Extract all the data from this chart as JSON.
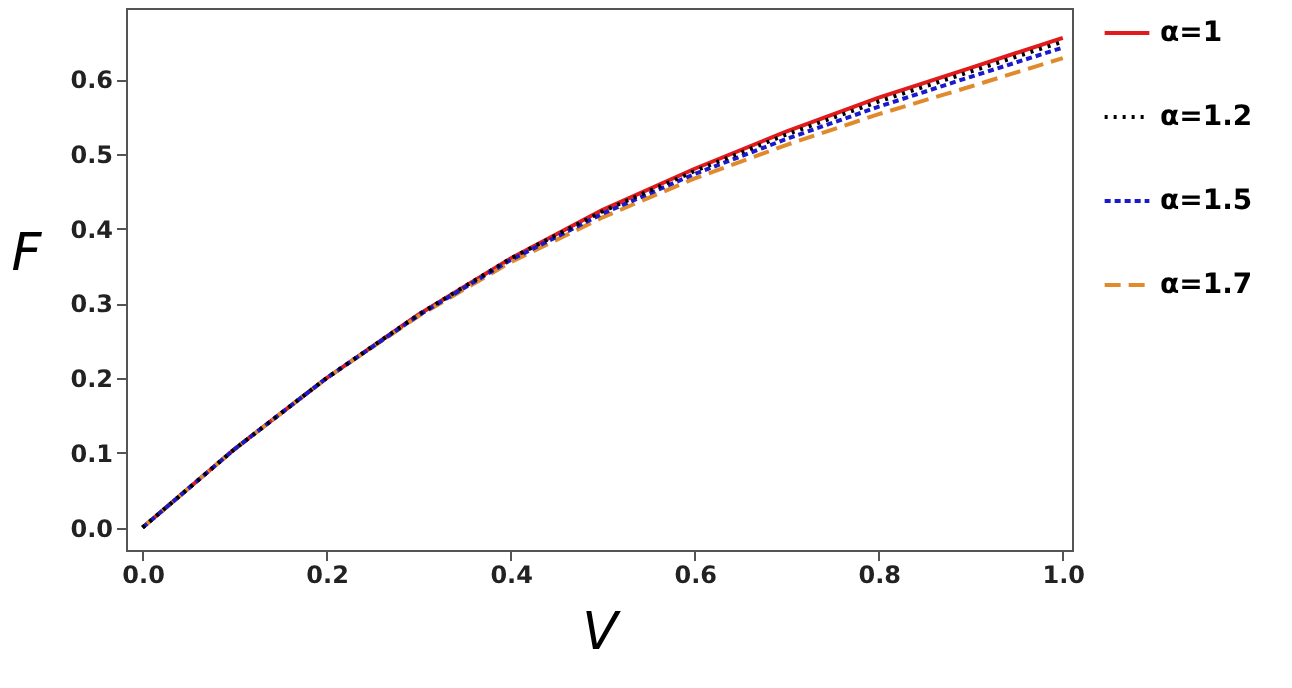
{
  "chart_data": {
    "type": "line",
    "xlabel": "V",
    "ylabel": "F",
    "x": [
      0,
      0.1,
      0.2,
      0.3,
      0.4,
      0.5,
      0.6,
      0.7,
      0.8,
      0.9,
      1.0
    ],
    "series": [
      {
        "name": "α=1",
        "color": "#e31a1c",
        "line_style": "solid",
        "values": [
          0,
          0.105,
          0.2,
          0.285,
          0.36,
          0.425,
          0.48,
          0.53,
          0.575,
          0.615,
          0.655
        ]
      },
      {
        "name": "α=1.2",
        "color": "#000000",
        "line_style": "dotted",
        "values": [
          0,
          0.105,
          0.2,
          0.285,
          0.36,
          0.423,
          0.477,
          0.526,
          0.57,
          0.61,
          0.65
        ]
      },
      {
        "name": "α=1.5",
        "color": "#1a1acc",
        "line_style": "dashed",
        "values": [
          0,
          0.105,
          0.2,
          0.284,
          0.358,
          0.42,
          0.473,
          0.52,
          0.563,
          0.603,
          0.642
        ]
      },
      {
        "name": "α=1.7",
        "color": "#e08a2c",
        "line_style": "dashed",
        "values": [
          0,
          0.105,
          0.2,
          0.283,
          0.355,
          0.415,
          0.467,
          0.512,
          0.553,
          0.59,
          0.628
        ]
      }
    ],
    "xlim": [
      -0.018,
      1.01
    ],
    "ylim": [
      -0.03,
      0.695
    ],
    "xticks": [
      {
        "value": 0,
        "label": "0.0"
      },
      {
        "value": 0.2,
        "label": "0.2"
      },
      {
        "value": 0.4,
        "label": "0.4"
      },
      {
        "value": 0.6,
        "label": "0.6"
      },
      {
        "value": 0.8,
        "label": "0.8"
      },
      {
        "value": 1.0,
        "label": "1.0"
      }
    ],
    "yticks": [
      {
        "value": 0,
        "label": "0.0"
      },
      {
        "value": 0.1,
        "label": "0.1"
      },
      {
        "value": 0.2,
        "label": "0.2"
      },
      {
        "value": 0.3,
        "label": "0.3"
      },
      {
        "value": 0.4,
        "label": "0.4"
      },
      {
        "value": 0.5,
        "label": "0.5"
      },
      {
        "value": 0.6,
        "label": "0.6"
      }
    ],
    "grid": false,
    "legend": "right"
  }
}
